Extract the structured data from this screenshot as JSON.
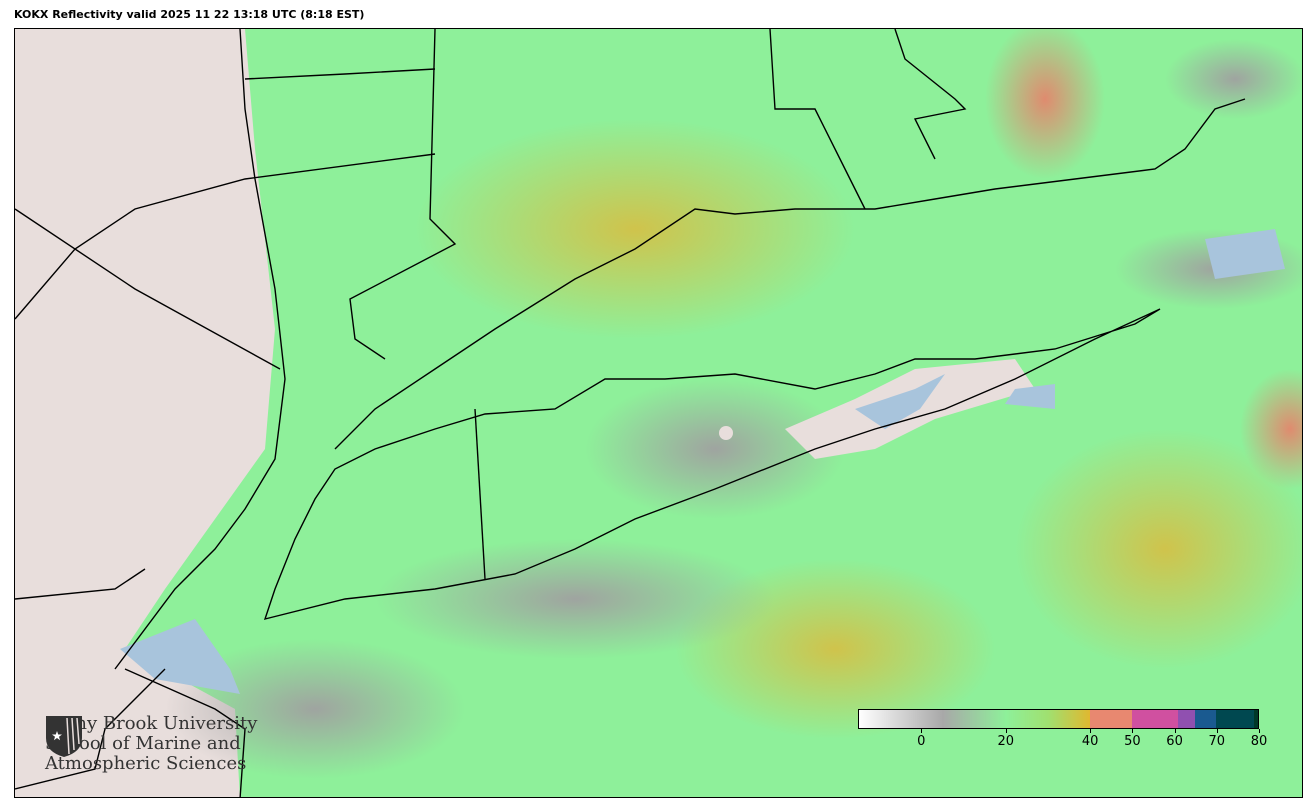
{
  "title": "KOKX Reflectivity valid 2025 11 22 13:18 UTC (8:18 EST)",
  "logo": {
    "lines": [
      "Stony Brook University",
      "School of Marine and",
      "Atmospheric Sciences"
    ]
  },
  "colorbar": {
    "range": [
      -15,
      80
    ],
    "ticks": [
      "0",
      "20",
      "40",
      "50",
      "60",
      "70",
      "80"
    ],
    "tick_values": [
      0,
      20,
      40,
      50,
      60,
      70,
      80
    ],
    "colors": {
      "low": "#ffffff",
      "mid_gray": "#a8a8a8",
      "green": "#8ef09a",
      "yellow": "#e0b830",
      "orange": "#e88870",
      "magenta": "#d050a0",
      "purple": "#9050b0",
      "blue": "#1a5a90",
      "teal": "#004850",
      "dark": "#003828"
    }
  },
  "map": {
    "land_color": "#e8dedc",
    "water_color": "#a8c4dc"
  }
}
